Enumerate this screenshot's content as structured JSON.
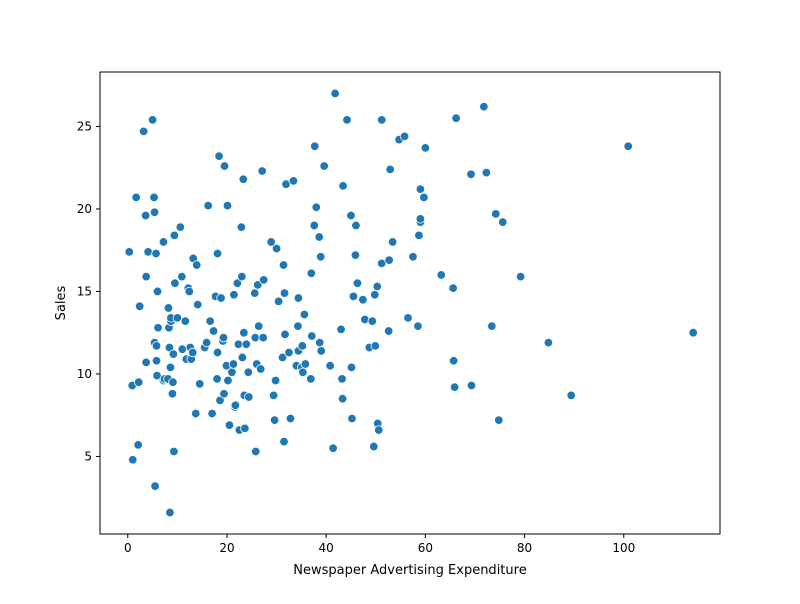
{
  "chart_data": {
    "type": "scatter",
    "title": "",
    "xlabel": "Newspaper Advertising Expenditure",
    "ylabel": "Sales",
    "xlim": [
      -5.6,
      119.4
    ],
    "ylim": [
      0.3,
      28.3
    ],
    "xticks": [
      0,
      20,
      40,
      60,
      80,
      100
    ],
    "yticks": [
      5,
      10,
      15,
      20,
      25
    ],
    "grid": false,
    "legend": "none",
    "marker_color": "#1f77b4",
    "marker_edge_color": "#ffffff",
    "points": [
      [
        0.3,
        17.4
      ],
      [
        0.9,
        9.3
      ],
      [
        1.0,
        4.8
      ],
      [
        1.7,
        20.7
      ],
      [
        2.1,
        5.7
      ],
      [
        2.2,
        9.5
      ],
      [
        2.4,
        14.1
      ],
      [
        3.2,
        24.7
      ],
      [
        3.6,
        19.6
      ],
      [
        3.7,
        15.9
      ],
      [
        3.7,
        10.7
      ],
      [
        4.1,
        17.4
      ],
      [
        5.0,
        25.4
      ],
      [
        5.3,
        20.7
      ],
      [
        5.4,
        19.8
      ],
      [
        5.4,
        11.9
      ],
      [
        5.5,
        3.2
      ],
      [
        5.7,
        17.3
      ],
      [
        5.8,
        10.8
      ],
      [
        5.8,
        11.7
      ],
      [
        5.9,
        9.9
      ],
      [
        6.0,
        15.0
      ],
      [
        6.1,
        12.8
      ],
      [
        7.2,
        18.0
      ],
      [
        7.2,
        9.6
      ],
      [
        7.4,
        9.7
      ],
      [
        8.1,
        9.7
      ],
      [
        8.2,
        14.0
      ],
      [
        8.3,
        12.8
      ],
      [
        8.4,
        11.6
      ],
      [
        8.5,
        1.6
      ],
      [
        8.6,
        10.4
      ],
      [
        8.7,
        13.2
      ],
      [
        8.7,
        13.4
      ],
      [
        9.0,
        8.8
      ],
      [
        9.1,
        9.5
      ],
      [
        9.2,
        11.2
      ],
      [
        9.3,
        5.3
      ],
      [
        9.4,
        18.4
      ],
      [
        9.5,
        15.5
      ],
      [
        10.0,
        13.4
      ],
      [
        10.6,
        18.9
      ],
      [
        10.9,
        15.9
      ],
      [
        11.0,
        11.5
      ],
      [
        11.6,
        13.2
      ],
      [
        11.8,
        10.9
      ],
      [
        12.2,
        15.2
      ],
      [
        12.4,
        15.0
      ],
      [
        12.6,
        11.6
      ],
      [
        12.8,
        10.9
      ],
      [
        13.1,
        11.3
      ],
      [
        13.2,
        17.0
      ],
      [
        13.7,
        7.6
      ],
      [
        13.9,
        16.6
      ],
      [
        14.1,
        14.2
      ],
      [
        14.5,
        9.4
      ],
      [
        15.5,
        11.6
      ],
      [
        15.9,
        11.9
      ],
      [
        16.2,
        20.2
      ],
      [
        16.6,
        13.2
      ],
      [
        17.0,
        7.6
      ],
      [
        17.3,
        12.6
      ],
      [
        17.7,
        14.7
      ],
      [
        18.0,
        9.7
      ],
      [
        18.1,
        11.3
      ],
      [
        18.1,
        17.3
      ],
      [
        18.4,
        23.2
      ],
      [
        18.6,
        8.4
      ],
      [
        18.8,
        14.6
      ],
      [
        19.2,
        12.0
      ],
      [
        19.3,
        12.2
      ],
      [
        19.4,
        8.8
      ],
      [
        19.5,
        22.6
      ],
      [
        19.9,
        10.5
      ],
      [
        20.1,
        20.2
      ],
      [
        20.2,
        9.6
      ],
      [
        20.5,
        6.9
      ],
      [
        21.0,
        10.1
      ],
      [
        21.3,
        10.6
      ],
      [
        21.4,
        14.8
      ],
      [
        21.6,
        8.0
      ],
      [
        21.7,
        8.1
      ],
      [
        22.1,
        15.5
      ],
      [
        22.3,
        11.8
      ],
      [
        22.5,
        6.6
      ],
      [
        22.9,
        18.9
      ],
      [
        23.0,
        15.9
      ],
      [
        23.1,
        11.0
      ],
      [
        23.3,
        21.8
      ],
      [
        23.4,
        12.5
      ],
      [
        23.5,
        8.7
      ],
      [
        23.6,
        6.7
      ],
      [
        23.9,
        11.8
      ],
      [
        24.3,
        10.1
      ],
      [
        24.4,
        8.6
      ],
      [
        25.6,
        14.9
      ],
      [
        25.7,
        12.2
      ],
      [
        25.8,
        5.3
      ],
      [
        26.0,
        10.6
      ],
      [
        26.2,
        15.4
      ],
      [
        26.4,
        12.9
      ],
      [
        26.8,
        10.3
      ],
      [
        27.1,
        22.3
      ],
      [
        27.3,
        12.2
      ],
      [
        27.4,
        15.7
      ],
      [
        28.9,
        18.0
      ],
      [
        29.4,
        8.7
      ],
      [
        29.6,
        7.2
      ],
      [
        29.8,
        9.6
      ],
      [
        30.0,
        17.6
      ],
      [
        30.4,
        14.4
      ],
      [
        31.2,
        11.0
      ],
      [
        31.4,
        16.6
      ],
      [
        31.5,
        5.9
      ],
      [
        31.6,
        14.9
      ],
      [
        31.7,
        12.4
      ],
      [
        31.9,
        21.5
      ],
      [
        32.5,
        11.3
      ],
      [
        32.8,
        7.3
      ],
      [
        33.4,
        21.7
      ],
      [
        34.0,
        10.5
      ],
      [
        34.3,
        12.9
      ],
      [
        34.4,
        14.6
      ],
      [
        34.4,
        11.4
      ],
      [
        35.1,
        10.4
      ],
      [
        35.2,
        11.7
      ],
      [
        35.3,
        10.1
      ],
      [
        35.6,
        13.6
      ],
      [
        35.8,
        10.6
      ],
      [
        36.9,
        9.7
      ],
      [
        37.0,
        16.1
      ],
      [
        37.1,
        12.3
      ],
      [
        37.6,
        19.0
      ],
      [
        37.7,
        23.8
      ],
      [
        38.0,
        20.1
      ],
      [
        38.6,
        18.3
      ],
      [
        38.7,
        11.9
      ],
      [
        38.9,
        17.1
      ],
      [
        39.0,
        11.4
      ],
      [
        39.6,
        22.6
      ],
      [
        40.8,
        10.5
      ],
      [
        41.4,
        5.5
      ],
      [
        41.8,
        27.0
      ],
      [
        43.0,
        12.7
      ],
      [
        43.2,
        9.7
      ],
      [
        43.3,
        8.5
      ],
      [
        43.4,
        21.4
      ],
      [
        44.2,
        25.4
      ],
      [
        45.0,
        19.6
      ],
      [
        45.1,
        10.4
      ],
      [
        45.2,
        7.3
      ],
      [
        45.5,
        14.7
      ],
      [
        45.9,
        17.2
      ],
      [
        46.0,
        19.0
      ],
      [
        46.3,
        15.5
      ],
      [
        47.4,
        14.5
      ],
      [
        47.8,
        13.3
      ],
      [
        48.7,
        11.6
      ],
      [
        49.3,
        13.2
      ],
      [
        49.6,
        5.6
      ],
      [
        49.8,
        14.8
      ],
      [
        49.9,
        11.7
      ],
      [
        50.3,
        15.3
      ],
      [
        50.4,
        7.0
      ],
      [
        50.6,
        6.6
      ],
      [
        51.2,
        25.4
      ],
      [
        51.2,
        16.7
      ],
      [
        52.6,
        12.6
      ],
      [
        52.7,
        16.9
      ],
      [
        52.9,
        22.4
      ],
      [
        53.4,
        18.0
      ],
      [
        54.7,
        24.2
      ],
      [
        55.8,
        24.4
      ],
      [
        56.5,
        13.4
      ],
      [
        57.5,
        17.1
      ],
      [
        58.5,
        12.9
      ],
      [
        58.7,
        18.4
      ],
      [
        59.0,
        21.2
      ],
      [
        59.0,
        19.2
      ],
      [
        59.0,
        19.4
      ],
      [
        59.7,
        20.7
      ],
      [
        60.0,
        23.7
      ],
      [
        63.2,
        16.0
      ],
      [
        65.6,
        15.2
      ],
      [
        65.7,
        10.8
      ],
      [
        65.9,
        9.2
      ],
      [
        66.2,
        25.5
      ],
      [
        69.2,
        22.1
      ],
      [
        69.3,
        9.3
      ],
      [
        71.8,
        26.2
      ],
      [
        72.3,
        22.2
      ],
      [
        73.4,
        12.9
      ],
      [
        74.2,
        19.7
      ],
      [
        74.8,
        7.2
      ],
      [
        75.6,
        19.2
      ],
      [
        79.2,
        15.9
      ],
      [
        84.8,
        11.9
      ],
      [
        89.4,
        8.7
      ],
      [
        100.9,
        23.8
      ],
      [
        114.0,
        12.5
      ]
    ]
  }
}
